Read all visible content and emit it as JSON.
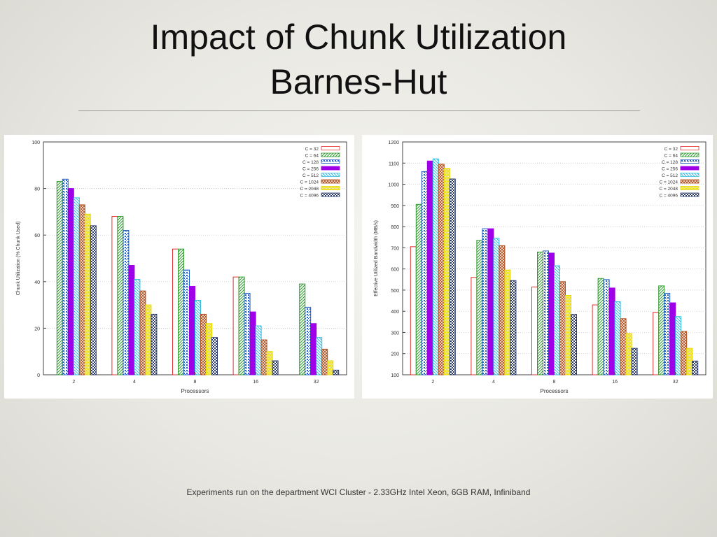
{
  "slide": {
    "title_line1": "Impact of Chunk Utilization",
    "title_line2": "Barnes-Hut",
    "footer": "Experiments run on the department WCI Cluster - 2.33GHz Intel Xeon, 6GB RAM, Infiniband"
  },
  "chart_data": [
    {
      "type": "bar",
      "title": "",
      "xlabel": "Processors",
      "ylabel": "Chunk Utilization (% Chunk Used)",
      "categories": [
        "2",
        "4",
        "8",
        "16",
        "32"
      ],
      "ylim": [
        0,
        100
      ],
      "yticks": [
        "0",
        "20",
        "40",
        "60",
        "80",
        "100"
      ],
      "grid": true,
      "legend_position": "top-right",
      "series": [
        {
          "name": "C = 32",
          "color": "#e03030",
          "values": [
            null,
            68,
            54,
            42,
            null
          ]
        },
        {
          "name": "C = 64",
          "color": "#2e9a2e",
          "values": [
            83,
            68,
            54,
            42,
            39
          ]
        },
        {
          "name": "C = 128",
          "color": "#1f5fc8",
          "values": [
            84,
            62,
            45,
            35,
            29
          ]
        },
        {
          "name": "C = 256",
          "color": "#a000e8",
          "values": [
            80,
            47,
            38,
            27,
            22
          ]
        },
        {
          "name": "C = 512",
          "color": "#33bbdd",
          "values": [
            76,
            41,
            32,
            21,
            16
          ]
        },
        {
          "name": "C = 1024",
          "color": "#b05020",
          "values": [
            73,
            36,
            26,
            15,
            11
          ]
        },
        {
          "name": "C = 2048",
          "color": "#e8d800",
          "values": [
            69,
            30,
            22,
            10,
            6
          ]
        },
        {
          "name": "C = 4096",
          "color": "#2a3a6a",
          "values": [
            64,
            26,
            16,
            6,
            2
          ]
        }
      ]
    },
    {
      "type": "bar",
      "title": "",
      "xlabel": "Processors",
      "ylabel": "Effective Utilized Bandwidth (MB/s)",
      "categories": [
        "2",
        "4",
        "8",
        "16",
        "32"
      ],
      "ylim": [
        100,
        1200
      ],
      "yticks": [
        "100",
        "200",
        "300",
        "400",
        "500",
        "600",
        "700",
        "800",
        "900",
        "1000",
        "1100",
        "1200"
      ],
      "grid": true,
      "legend_position": "top-right",
      "series": [
        {
          "name": "C = 32",
          "color": "#e03030",
          "values": [
            705,
            560,
            515,
            430,
            395
          ]
        },
        {
          "name": "C = 64",
          "color": "#2e9a2e",
          "values": [
            905,
            735,
            680,
            555,
            520
          ]
        },
        {
          "name": "C = 128",
          "color": "#1f5fc8",
          "values": [
            1060,
            790,
            685,
            550,
            485
          ]
        },
        {
          "name": "C = 256",
          "color": "#a000e8",
          "values": [
            1110,
            790,
            675,
            510,
            440
          ]
        },
        {
          "name": "C = 512",
          "color": "#33bbdd",
          "values": [
            1120,
            745,
            615,
            445,
            375
          ]
        },
        {
          "name": "C = 1024",
          "color": "#b05020",
          "values": [
            1095,
            710,
            540,
            365,
            305
          ]
        },
        {
          "name": "C = 2048",
          "color": "#e8d800",
          "values": [
            1075,
            595,
            475,
            295,
            225
          ]
        },
        {
          "name": "C = 4096",
          "color": "#2a3a6a",
          "values": [
            1025,
            545,
            385,
            225,
            165
          ]
        }
      ]
    }
  ]
}
